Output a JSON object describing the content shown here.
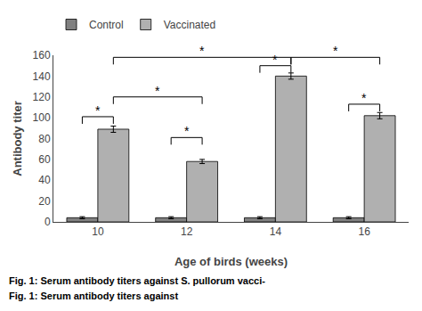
{
  "chart_data": {
    "type": "bar",
    "categories": [
      "10",
      "12",
      "14",
      "16"
    ],
    "series": [
      {
        "name": "Control",
        "color": "#808080",
        "values": [
          4,
          4,
          4,
          4
        ],
        "errors": [
          1,
          1,
          1,
          1
        ]
      },
      {
        "name": "Vaccinated",
        "color": "#b0b0b0",
        "values": [
          89,
          58,
          140,
          102
        ],
        "errors": [
          3,
          2,
          3,
          3
        ]
      }
    ],
    "xlabel": "Age of birds (weeks)",
    "ylabel": "Antibody titer",
    "ylim": [
      0,
      160
    ],
    "yticks": [
      0,
      20,
      40,
      60,
      80,
      100,
      120,
      140,
      160
    ],
    "grid": false,
    "legend": "upper left",
    "annotations": [
      {
        "text": "*",
        "y": 101,
        "from": {
          "category": "10",
          "series": "Control"
        },
        "to": {
          "category": "10",
          "series": "Vaccinated"
        }
      },
      {
        "text": "*",
        "y": 81,
        "from": {
          "category": "12",
          "series": "Control"
        },
        "to": {
          "category": "12",
          "series": "Vaccinated"
        }
      },
      {
        "text": "*",
        "y": 150,
        "from": {
          "category": "14",
          "series": "Control"
        },
        "to": {
          "category": "14",
          "series": "Vaccinated"
        }
      },
      {
        "text": "*",
        "y": 113,
        "from": {
          "category": "16",
          "series": "Control"
        },
        "to": {
          "category": "16",
          "series": "Vaccinated"
        }
      },
      {
        "text": "*",
        "y": 120,
        "from": {
          "category": "10",
          "series": "Vaccinated"
        },
        "to": {
          "category": "12",
          "series": "Vaccinated"
        }
      },
      {
        "text": "*",
        "y": 158,
        "from": {
          "category": "10",
          "series": "Vaccinated"
        },
        "to": {
          "category": "14",
          "series": "Vaccinated"
        }
      },
      {
        "text": "*",
        "y": 158,
        "from": {
          "category": "14",
          "series": "Vaccinated"
        },
        "to": {
          "category": "16",
          "series": "Vaccinated"
        }
      }
    ],
    "caption": [
      "Fig. 1: Serum antibody titers against S. pullorum vacci-",
      "Fig. 1: Serum antibody titers against"
    ]
  }
}
